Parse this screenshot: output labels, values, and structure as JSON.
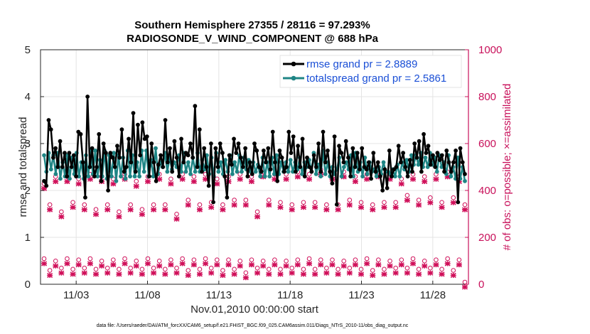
{
  "chart_data": {
    "type": "line",
    "title_line1": "Southern Hemisphere 27355 / 28116 = 97.293%",
    "title_line2": "RADIOSONDE_V_WIND_COMPONENT @ 688 hPa",
    "xlabel": "Nov.01,2010 00:00:00 start",
    "ylabel_left": "rmse and totalspread",
    "ylabel_right": "# of obs: o=possible; ×=assimilated",
    "footer": "data file: /Users/raeder/DAI/ATM_forcXX/CAM6_setup/f.e21.FHIST_BGC.f09_025.CAM6assim.011/Diags_NTrS_2010-11/obs_diag_output.nc",
    "xlim": [
      0.5,
      30.5
    ],
    "ylim_left": [
      0,
      5
    ],
    "ylim_right": [
      0,
      1000
    ],
    "x_ticks": [
      3,
      8,
      13,
      18,
      23,
      28
    ],
    "x_tick_labels": [
      "11/03",
      "11/08",
      "11/13",
      "11/18",
      "11/23",
      "11/28"
    ],
    "y_ticks_left": [
      "0",
      "1",
      "2",
      "3",
      "4",
      "5"
    ],
    "y_ticks_right": [
      "0",
      "200",
      "400",
      "600",
      "800",
      "1000"
    ],
    "legend": {
      "position": "top-right",
      "entries": [
        "rmse grand pr = 2.8889",
        "totalspread grand pr = 2.5861"
      ]
    },
    "colors": {
      "rmse": "#000000",
      "spread": "#1f8585",
      "obs": "#d0105a",
      "legend_text": "#1a4fd6",
      "right_axis": "#c8105a"
    },
    "series": [
      {
        "name": "rmse",
        "values": [
          2.2,
          2.1,
          3.5,
          3.3,
          2.7,
          2.9,
          2.5,
          3.05,
          2.5,
          2.8,
          2.3,
          2.8,
          2.5,
          2.75,
          2.3,
          3.25,
          3.2,
          2.6,
          1.85,
          4.0,
          2.5,
          2.9,
          2.3,
          2.5,
          3.2,
          2.2,
          3.0,
          2.8,
          2.0,
          2.8,
          2.7,
          2.5,
          2.95,
          2.7,
          3.3,
          2.4,
          2.5,
          3.1,
          2.6,
          3.65,
          2.4,
          3.4,
          2.75,
          3.45,
          3.1,
          3.15,
          2.3,
          3.0,
          2.6,
          2.2,
          2.55,
          2.75,
          2.5,
          3.5,
          2.6,
          2.9,
          2.4,
          3.05,
          2.7,
          2.3,
          3.1,
          2.6,
          2.8,
          2.75,
          3.0,
          2.7,
          3.8,
          2.5,
          3.3,
          2.4,
          2.9,
          2.5,
          2.1,
          3.0,
          1.75,
          2.9,
          2.5,
          3.0,
          2.8,
          2.3,
          1.85,
          2.75,
          2.55,
          3.1,
          2.8,
          3.0,
          2.7,
          2.5,
          2.9,
          2.3,
          2.6,
          2.35,
          3.0,
          2.85,
          2.5,
          2.4,
          2.85,
          2.6,
          2.9,
          2.45,
          3.25,
          2.6,
          2.2,
          2.85,
          2.7,
          2.4,
          2.5,
          3.25,
          2.8,
          3.15,
          2.4,
          2.95,
          2.5,
          3.1,
          2.3,
          2.7,
          2.5,
          2.4,
          2.75,
          2.5,
          3.0,
          2.4,
          3.25,
          2.6,
          2.85,
          2.4,
          2.15,
          3.15,
          1.7,
          2.95,
          2.8,
          2.6,
          3.05,
          2.7,
          2.3,
          2.9,
          2.5,
          2.8,
          2.45,
          2.9,
          2.5,
          2.45,
          2.6,
          2.25,
          2.8,
          2.4,
          2.6,
          2.3,
          2.0,
          2.45,
          2.05,
          2.85,
          2.3,
          2.45,
          2.5,
          2.95,
          2.6,
          2.8,
          2.5,
          2.3,
          2.65,
          2.4,
          3.0,
          2.7,
          3.05,
          2.4,
          3.2,
          2.8,
          2.95,
          2.55,
          2.75,
          2.5,
          2.8,
          2.65,
          2.75,
          2.4,
          2.85,
          2.6,
          2.4,
          2.6,
          2.85,
          1.75,
          2.9,
          2.6,
          2.35
        ]
      },
      {
        "name": "totalspread",
        "values": [
          2.75,
          2.4,
          2.8,
          2.45,
          2.75,
          2.35,
          2.8,
          2.25,
          2.6,
          2.3,
          2.75,
          2.25,
          2.7,
          2.35,
          2.8,
          2.3,
          2.6,
          2.25,
          2.75,
          2.3,
          2.85,
          2.35,
          2.85,
          2.3,
          2.65,
          2.3,
          2.85,
          2.25,
          2.75,
          2.3,
          2.8,
          2.2,
          2.75,
          2.3,
          2.7,
          2.25,
          2.85,
          2.3,
          2.75,
          2.3,
          2.6,
          2.3,
          2.85,
          2.4,
          2.85,
          2.3,
          2.65,
          2.3,
          2.9,
          2.35,
          2.6,
          2.5,
          2.8,
          2.4,
          2.7,
          2.45,
          2.6,
          2.5,
          2.75,
          2.4,
          2.8,
          2.4,
          2.6,
          2.35,
          2.7,
          2.4,
          2.8,
          2.4,
          2.65,
          2.45,
          2.75,
          2.35,
          2.7,
          2.3,
          2.8,
          2.4,
          2.6,
          2.35,
          2.65,
          2.4,
          2.75,
          2.35,
          2.6,
          2.4,
          2.75,
          2.4,
          2.7,
          2.45,
          2.65,
          2.4,
          2.6,
          2.4,
          2.55,
          2.3,
          2.7,
          2.3,
          2.6,
          2.3,
          2.7,
          2.35,
          2.75,
          2.35,
          2.6,
          2.4,
          2.6,
          2.4,
          2.65,
          2.4,
          2.6,
          2.45,
          2.7,
          2.35,
          2.6,
          2.5,
          2.65,
          2.4,
          2.8,
          2.35,
          2.55,
          2.3,
          2.85,
          2.35,
          2.6,
          2.3,
          2.5,
          2.35,
          2.45,
          2.7,
          2.3,
          2.5,
          2.6,
          2.45,
          2.75,
          2.3,
          2.8,
          2.4,
          2.6,
          2.3,
          2.7,
          2.35,
          2.6,
          2.4,
          2.45,
          2.3,
          2.5,
          2.35,
          2.6,
          2.4,
          2.4,
          2.35,
          2.45,
          2.3,
          2.55,
          2.3,
          2.6,
          2.45,
          2.65,
          2.4,
          2.75,
          2.55,
          2.75,
          2.55,
          2.8,
          2.5,
          2.7,
          2.5,
          2.8,
          2.55,
          2.7,
          2.4,
          2.75,
          2.5,
          2.6,
          2.35,
          2.75,
          2.3,
          2.5,
          2.25,
          2.7,
          2.25,
          2.5,
          2.2
        ]
      },
      {
        "name": "obs_possible_high",
        "values": [
          420,
          330,
          450,
          300,
          450,
          340,
          440,
          330,
          460,
          310,
          450,
          330,
          440,
          300,
          460,
          330,
          430,
          310,
          450,
          330,
          460,
          330,
          440,
          290,
          460,
          350,
          450,
          330,
          460,
          340,
          440,
          330,
          450,
          350,
          460,
          350,
          450,
          300,
          470,
          350,
          460,
          340,
          460,
          330,
          470,
          340,
          460,
          340,
          480,
          330,
          460,
          330,
          470,
          350,
          450,
          340,
          460,
          330,
          470,
          340,
          460,
          340,
          440,
          370,
          460,
          350,
          450,
          360,
          460,
          340,
          470,
          360,
          450,
          330
        ]
      },
      {
        "name": "obs_possible_low",
        "values": [
          100,
          50,
          90,
          60,
          100,
          55,
          95,
          60,
          100,
          55,
          90,
          60,
          95,
          55,
          100,
          60,
          90,
          55,
          100,
          60,
          90,
          55,
          95,
          60,
          100,
          50,
          95,
          55,
          100,
          60,
          95,
          50,
          95,
          55,
          90,
          40,
          95,
          60,
          90,
          55,
          95,
          55,
          90,
          60,
          95,
          55,
          100,
          55,
          95,
          60,
          95,
          55,
          90,
          60,
          95,
          55,
          100,
          50,
          95,
          55,
          90,
          60,
          95,
          60,
          100,
          55,
          90,
          60,
          95,
          55,
          100,
          50,
          95,
          0
        ]
      }
    ]
  }
}
